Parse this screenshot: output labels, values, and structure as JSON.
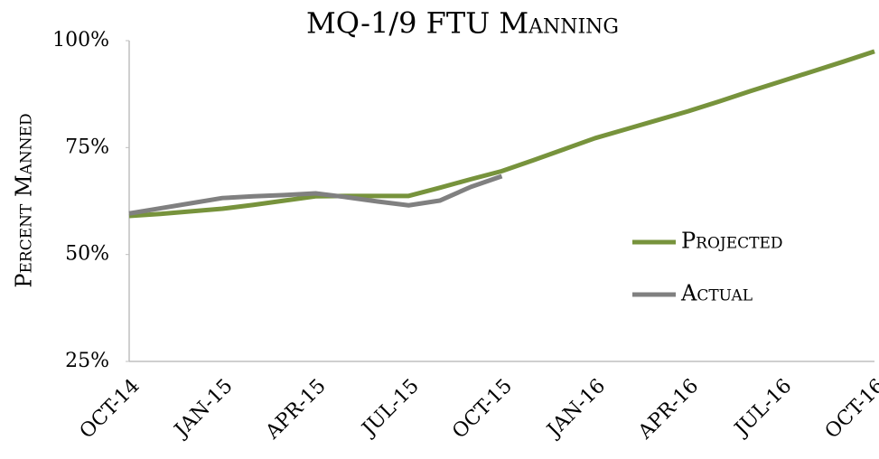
{
  "chart_data": {
    "type": "line",
    "title": "MQ-1/9 FTU Manning",
    "y_label": "Percent Manned",
    "categories": [
      "OCT-14",
      null,
      null,
      "JAN-15",
      null,
      null,
      "APR-15",
      null,
      null,
      "JUL-15",
      null,
      null,
      "OCT-15",
      null,
      null,
      "JAN-16",
      null,
      null,
      "APR-16",
      null,
      null,
      "JUL-16",
      null,
      null,
      "OCT-16"
    ],
    "series": [
      {
        "name": "Projected",
        "color": "#77933c",
        "values": [
          59,
          59.5,
          60.1,
          60.7,
          61.6,
          62.6,
          63.6,
          63.7,
          63.7,
          63.7,
          65.6,
          67.6,
          69.5,
          72,
          74.6,
          77.2,
          79.3,
          81.4,
          83.5,
          85.8,
          88.2,
          90.5,
          92.8,
          95.1,
          97.5
        ]
      },
      {
        "name": "Actual",
        "color": "#808080",
        "values": [
          59.6,
          60.8,
          62,
          63.2,
          63.6,
          63.9,
          64.3,
          63.4,
          62.4,
          61.5,
          62.6,
          65.8,
          68.3,
          null,
          null,
          null,
          null,
          null,
          null,
          null,
          null,
          null,
          null,
          null,
          null
        ]
      }
    ],
    "ylim": [
      25,
      100
    ],
    "yticks": [
      {
        "value": 25,
        "label": "25%"
      },
      {
        "value": 50,
        "label": "50%"
      },
      {
        "value": 75,
        "label": "75%"
      },
      {
        "value": 100,
        "label": "100%"
      }
    ],
    "grid": false,
    "legend": "right"
  }
}
